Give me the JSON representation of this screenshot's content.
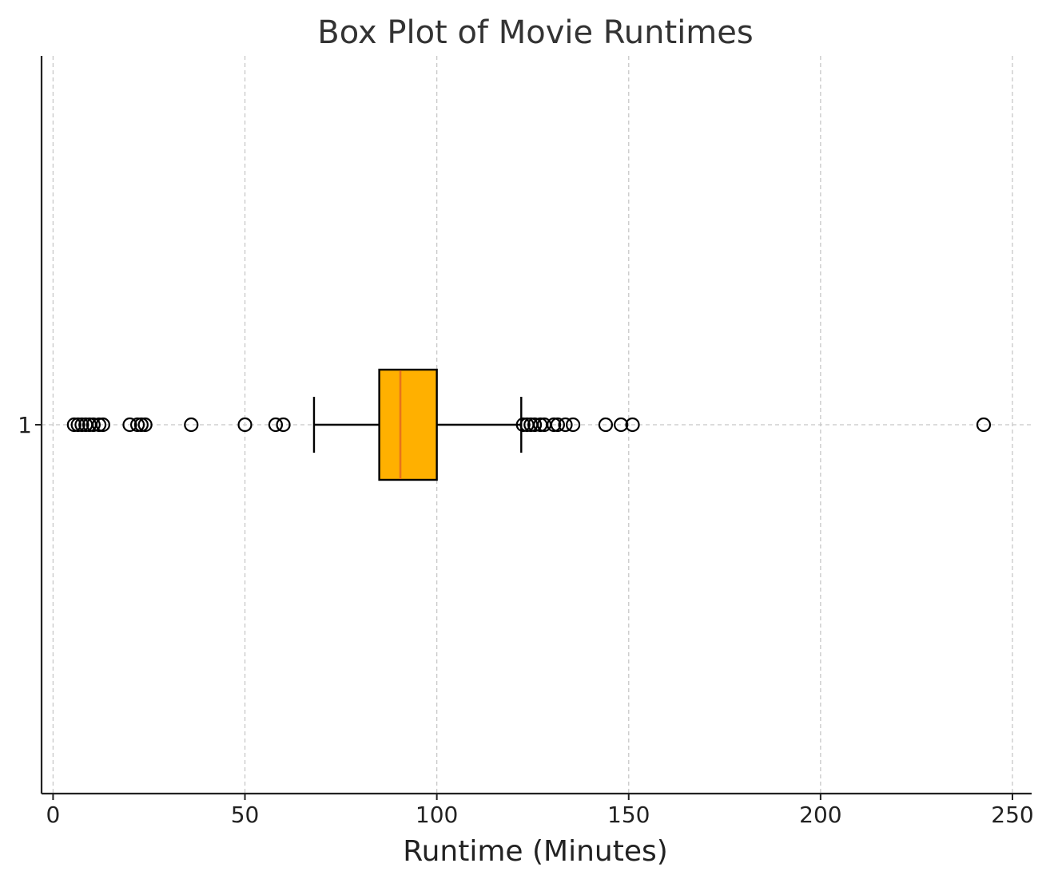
{
  "chart_data": {
    "type": "boxplot",
    "orientation": "horizontal",
    "title": "Box Plot of Movie Runtimes",
    "xlabel": "Runtime (Minutes)",
    "ylabel": "",
    "xlim": [
      -3,
      255
    ],
    "xticks": [
      0,
      50,
      100,
      150,
      200,
      250
    ],
    "yticks": [
      "1"
    ],
    "grid": true,
    "box_color": "#FFB000",
    "median_color": "#E8731A",
    "box": {
      "category": "1",
      "whisker_low": 68,
      "q1": 85,
      "median": 90.5,
      "q3": 100,
      "whisker_high": 122
    },
    "outliers": [
      5.5,
      6.5,
      7.5,
      8.5,
      9.5,
      10.5,
      12,
      13,
      20,
      22,
      23,
      24,
      36,
      50,
      58,
      60,
      122.5,
      123.5,
      124.5,
      125.5,
      127,
      128,
      130.5,
      131.5,
      133.5,
      135.5,
      144,
      148,
      151,
      242.5
    ]
  }
}
